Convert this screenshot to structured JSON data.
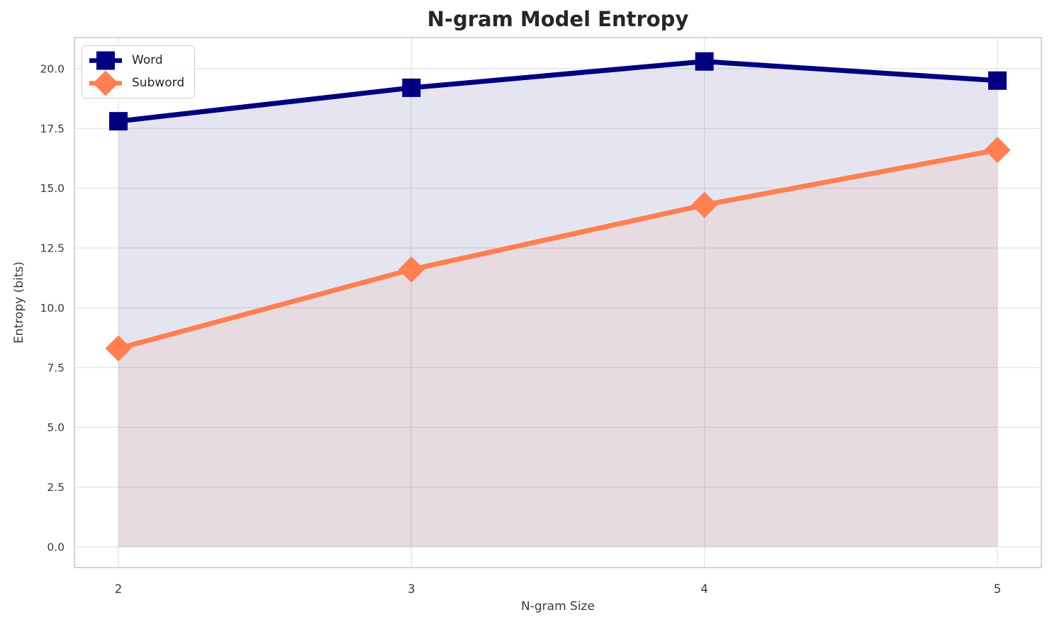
{
  "chart_data": {
    "type": "line",
    "title": "N-gram Model Entropy",
    "xlabel": "N-gram Size",
    "ylabel": "Entropy (bits)",
    "x": [
      2,
      3,
      4,
      5
    ],
    "series": [
      {
        "name": "Word",
        "values": [
          17.8,
          19.2,
          20.3,
          19.5
        ],
        "color": "#000080",
        "marker": "square",
        "fill_to_zero": true,
        "fill_alpha": 0.1
      },
      {
        "name": "Subword",
        "values": [
          8.3,
          11.6,
          14.3,
          16.6
        ],
        "color": "#FF7F50",
        "marker": "diamond",
        "fill_to_zero": true,
        "fill_alpha": 0.1
      }
    ],
    "xticks": {
      "values": [
        2,
        3,
        4,
        5
      ],
      "labels": [
        "2",
        "3",
        "4",
        "5"
      ]
    },
    "yticks": {
      "values": [
        0,
        2.5,
        5,
        7.5,
        10,
        12.5,
        15,
        17.5,
        20
      ],
      "labels": [
        "0.0",
        "2.5",
        "5.0",
        "7.5",
        "10.0",
        "12.5",
        "15.0",
        "17.5",
        "20.0"
      ]
    },
    "xlim": [
      1.85,
      5.15
    ],
    "ylim": [
      -0.86,
      21.3
    ],
    "grid": true,
    "legend_position": "upper left"
  },
  "colors": {
    "background": "#ffffff",
    "plot_background": "#ffffff",
    "grid": "#e6e6e6",
    "spine": "#c8c8c8",
    "title_text": "#262626",
    "tick_text": "#3a3a3a"
  }
}
